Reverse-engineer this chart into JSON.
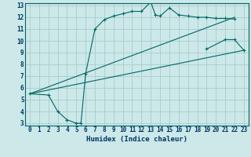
{
  "xlabel": "Humidex (Indice chaleur)",
  "bg_color": "#cce8e8",
  "grid_color": "#aacccc",
  "line_color": "#006666",
  "xlim": [
    -0.5,
    23.5
  ],
  "ylim": [
    2.8,
    13.2
  ],
  "xticks": [
    0,
    1,
    2,
    3,
    4,
    5,
    6,
    7,
    8,
    9,
    10,
    11,
    12,
    13,
    14,
    15,
    16,
    17,
    18,
    19,
    20,
    21,
    22,
    23
  ],
  "yticks": [
    3,
    4,
    5,
    6,
    7,
    8,
    9,
    10,
    11,
    12,
    13
  ],
  "line1_x": [
    0,
    2,
    3,
    4,
    5,
    5.5,
    6,
    7,
    8,
    9,
    10,
    11,
    12,
    13,
    13.5,
    14,
    15,
    16,
    17,
    18,
    19,
    20,
    21,
    22
  ],
  "line1_y": [
    5.5,
    5.4,
    4.0,
    3.3,
    3.0,
    3.0,
    7.2,
    11.0,
    11.8,
    12.1,
    12.3,
    12.5,
    12.5,
    13.3,
    12.2,
    12.1,
    12.8,
    12.2,
    12.1,
    12.0,
    12.0,
    11.9,
    11.9,
    11.85
  ],
  "line2_x": [
    0,
    22
  ],
  "line2_y": [
    5.5,
    12.0
  ],
  "line3_x": [
    0,
    23
  ],
  "line3_y": [
    5.5,
    9.2
  ],
  "line4_x": [
    19,
    21,
    22,
    23
  ],
  "line4_y": [
    9.3,
    10.1,
    10.1,
    9.2
  ],
  "marker": "+"
}
